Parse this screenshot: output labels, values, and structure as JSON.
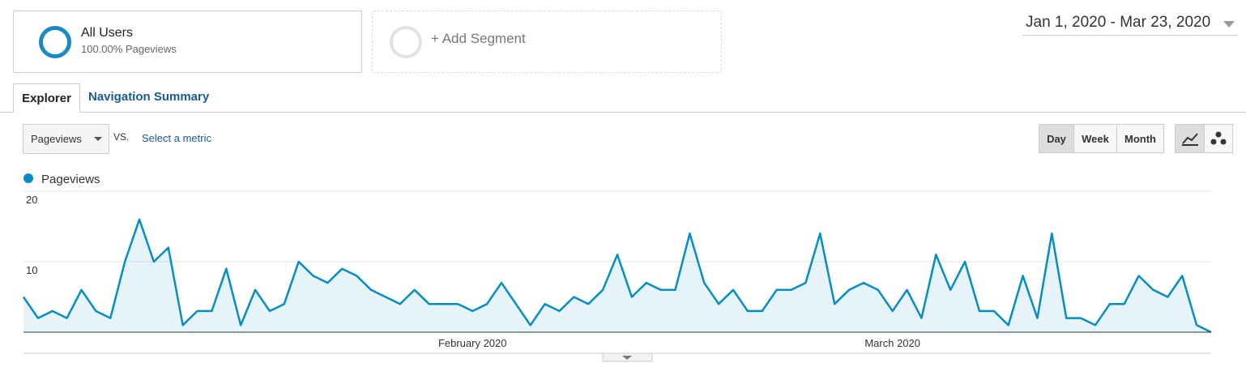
{
  "ui": {
    "segment_name": "All Users",
    "segment_detail": "100.00% Pageviews",
    "add_segment": "+ Add Segment",
    "date_range": "Jan 1, 2020 - Mar 23, 2020",
    "tabs": [
      "Explorer",
      "Navigation Summary"
    ],
    "metric_dropdown": "Pageviews",
    "vs": "VS.",
    "select_metric": "Select a metric",
    "granularity": [
      "Day",
      "Week",
      "Month"
    ]
  },
  "chart_data": {
    "type": "line",
    "categories": [
      null,
      null,
      null,
      null,
      null,
      null,
      null,
      null,
      null,
      null,
      null,
      null,
      null,
      null,
      null,
      null,
      null,
      null,
      null,
      null,
      null,
      null,
      null,
      null,
      null,
      null,
      null,
      null,
      null,
      null,
      null,
      "February 2020",
      null,
      null,
      null,
      null,
      null,
      null,
      null,
      null,
      null,
      null,
      null,
      null,
      null,
      null,
      null,
      null,
      null,
      null,
      null,
      null,
      null,
      null,
      null,
      null,
      null,
      null,
      null,
      null,
      "March 2020",
      null,
      null,
      null,
      null,
      null,
      null,
      null,
      null,
      null,
      null,
      null,
      null,
      null,
      null,
      null,
      null,
      null,
      null,
      null,
      null,
      null,
      null
    ],
    "series": [
      {
        "name": "Pageviews",
        "color": "#058dc7",
        "values": [
          5,
          2,
          3,
          2,
          6,
          3,
          2,
          10,
          16,
          10,
          12,
          1,
          3,
          3,
          9,
          1,
          6,
          3,
          4,
          10,
          8,
          7,
          9,
          8,
          6,
          5,
          4,
          6,
          4,
          4,
          4,
          3,
          4,
          7,
          4,
          1,
          4,
          3,
          5,
          4,
          6,
          11,
          5,
          7,
          6,
          6,
          14,
          7,
          4,
          6,
          3,
          3,
          6,
          6,
          7,
          14,
          4,
          6,
          7,
          6,
          3,
          6,
          2,
          11,
          6,
          10,
          3,
          3,
          1,
          8,
          2,
          14,
          2,
          2,
          1,
          4,
          4,
          8,
          6,
          5,
          8,
          1,
          0
        ]
      }
    ],
    "ylim": [
      0,
      20
    ],
    "yticks": [
      10,
      20
    ],
    "grid": true
  }
}
